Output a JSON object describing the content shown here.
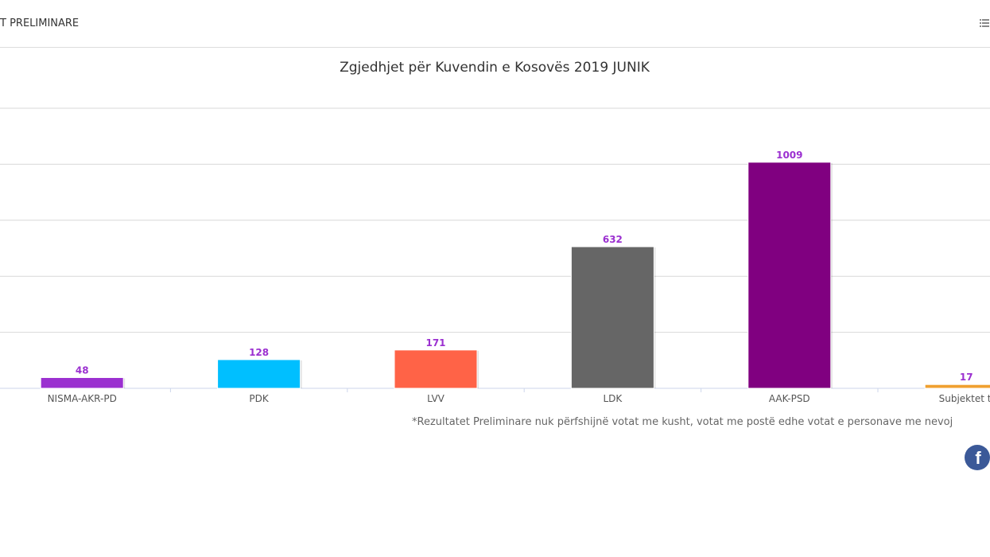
{
  "header": {
    "title": "T PRELIMINARE"
  },
  "footnote": "*Rezultatet Preliminare nuk përfshijnë votat me kusht, votat me postë edhe votat e personave me nevoj",
  "chart_data": {
    "type": "bar",
    "title": "Zgjedhjet për Kuvendin e Kosovës 2019 JUNIK",
    "categories": [
      "NISMA-AKR-PD",
      "PDK",
      "LVV",
      "LDK",
      "AAK-PSD",
      "Subjektet tj"
    ],
    "values": [
      48,
      128,
      171,
      632,
      1009,
      17
    ],
    "colors": [
      "#9b30d0",
      "#00bfff",
      "#ff6347",
      "#666666",
      "#800080",
      "#f0a030"
    ],
    "ylim": [
      0,
      1250
    ],
    "grid": true,
    "label_color": "#9b30d0",
    "xlabel": "",
    "ylabel": ""
  }
}
